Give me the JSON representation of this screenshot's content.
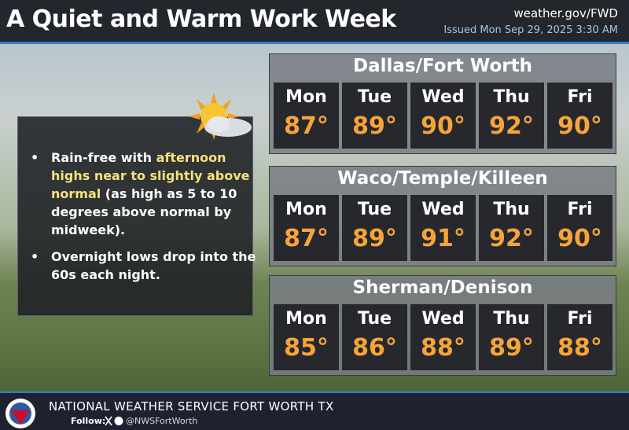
{
  "header": {
    "title": "A Quiet and Warm Work Week",
    "website": "weather.gov/FWD",
    "issued": "Issued Mon Sep 29, 2025 3:30 AM"
  },
  "bullets": [
    {
      "text": [
        "Rain-free with ",
        "afternoon highs near to slightly above normal",
        " (as high as 5 to 10 degrees above normal by midweek)."
      ],
      "highlight": 1
    },
    {
      "text": [
        "Overnight lows drop into the 60s each night."
      ]
    }
  ],
  "cities": [
    {
      "name": "Dallas/Fort Worth",
      "days": [
        "Mon",
        "Tue",
        "Wed",
        "Thu",
        "Fri"
      ],
      "highs": [
        "87°",
        "89°",
        "90°",
        "92°",
        "90°"
      ]
    },
    {
      "name": "Waco/Temple/Killeen",
      "days": [
        "Mon",
        "Tue",
        "Wed",
        "Thu",
        "Fri"
      ],
      "highs": [
        "87°",
        "89°",
        "91°",
        "92°",
        "90°"
      ]
    },
    {
      "name": "Sherman/Denison",
      "days": [
        "Mon",
        "Tue",
        "Wed",
        "Thu",
        "Fri"
      ],
      "highs": [
        "85°",
        "86°",
        "88°",
        "89°",
        "88°"
      ]
    }
  ],
  "footer": {
    "office": "NATIONAL WEATHER SERVICE FORT WORTH TX",
    "follow": "Follow:",
    "handle": "@NWSFortWorth"
  }
}
